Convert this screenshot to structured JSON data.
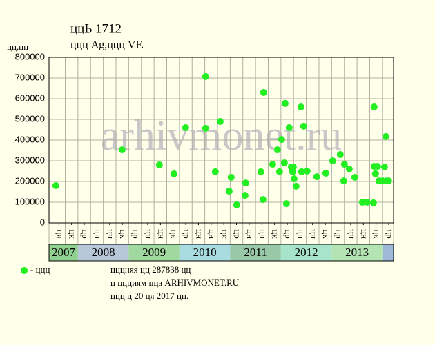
{
  "chart_data": {
    "type": "scatter",
    "title": "ццЬ 1712",
    "subtitle": "ццц Ag,ццц VF.",
    "y_label": "цц,цц",
    "watermark": "arhivmonet.ru",
    "ylim": [
      0,
      800000
    ],
    "yticks": [
      0,
      100000,
      200000,
      300000,
      400000,
      500000,
      600000,
      700000,
      800000
    ],
    "xlim": [
      2007.43,
      2014.22
    ],
    "xticks": [
      {
        "value": 2007.625,
        "label": "ця"
      },
      {
        "value": 2007.875,
        "label": "цк"
      },
      {
        "value": 2008.125,
        "label": "цр"
      },
      {
        "value": 2008.375,
        "label": "цн"
      },
      {
        "value": 2008.625,
        "label": "цн"
      },
      {
        "value": 2008.875,
        "label": "цк"
      },
      {
        "value": 2009.125,
        "label": "цр"
      },
      {
        "value": 2009.375,
        "label": "цн"
      },
      {
        "value": 2009.625,
        "label": "цн"
      },
      {
        "value": 2009.875,
        "label": "цк"
      },
      {
        "value": 2010.125,
        "label": "цр"
      },
      {
        "value": 2010.375,
        "label": "цн"
      },
      {
        "value": 2010.625,
        "label": "цн"
      },
      {
        "value": 2010.875,
        "label": "цк"
      },
      {
        "value": 2011.125,
        "label": "цр"
      },
      {
        "value": 2011.375,
        "label": "цн"
      },
      {
        "value": 2011.625,
        "label": "цн"
      },
      {
        "value": 2011.875,
        "label": "цк"
      },
      {
        "value": 2012.125,
        "label": "цр"
      },
      {
        "value": 2012.375,
        "label": "цн"
      },
      {
        "value": 2012.625,
        "label": "цн"
      },
      {
        "value": 2012.875,
        "label": "цк"
      },
      {
        "value": 2013.125,
        "label": "цр"
      },
      {
        "value": 2013.375,
        "label": "цн"
      },
      {
        "value": 2013.625,
        "label": "цн"
      },
      {
        "value": 2013.875,
        "label": "цк"
      },
      {
        "value": 2014.125,
        "label": "цр"
      }
    ],
    "year_bands": [
      {
        "label": "2007",
        "start": 2007,
        "end": 2008,
        "color": "#90d090"
      },
      {
        "label": "2008",
        "start": 2008,
        "end": 2009,
        "color": "#b8c8d8"
      },
      {
        "label": "2009",
        "start": 2009,
        "end": 2010,
        "color": "#a0d8a0"
      },
      {
        "label": "2010",
        "start": 2010,
        "end": 2011,
        "color": "#a8dce0"
      },
      {
        "label": "2011",
        "start": 2011,
        "end": 2012,
        "color": "#98c8a8"
      },
      {
        "label": "2012",
        "start": 2012,
        "end": 2013,
        "color": "#a8e4cc"
      },
      {
        "label": "2013",
        "start": 2013,
        "end": 2014,
        "color": "#b4e4b4"
      },
      {
        "label": null,
        "start": 2014,
        "end": 2015,
        "color": "#a0b8d8"
      }
    ],
    "grid": true,
    "series": [
      {
        "name": "- ццц",
        "color": "#22ee22",
        "x": [
          2007.565,
          2008.871,
          2009.605,
          2009.891,
          2010.122,
          2010.517,
          2010.517,
          2010.707,
          2010.803,
          2010.98,
          2011.02,
          2011.129,
          2011.293,
          2011.306,
          2011.605,
          2011.646,
          2011.66,
          2011.837,
          2011.932,
          2011.973,
          2012.014,
          2012.068,
          2012.082,
          2012.109,
          2012.163,
          2012.204,
          2012.231,
          2012.245,
          2012.259,
          2012.299,
          2012.395,
          2012.408,
          2012.449,
          2012.517,
          2012.707,
          2012.884,
          2013.02,
          2013.17,
          2013.238,
          2013.252,
          2013.347,
          2013.456,
          2013.605,
          2013.701,
          2013.823,
          2013.837,
          2013.837,
          2013.864,
          2013.905,
          2013.932,
          2014.0,
          2014.041,
          2014.068,
          2014.082,
          2014.122
        ],
        "values": [
          180000,
          353000,
          280000,
          237000,
          460000,
          707000,
          457000,
          247000,
          490000,
          153000,
          220000,
          87000,
          133000,
          193000,
          247000,
          113000,
          630000,
          283000,
          353000,
          247000,
          403000,
          290000,
          577000,
          93000,
          460000,
          270000,
          247000,
          270000,
          213000,
          177000,
          560000,
          247000,
          467000,
          250000,
          223000,
          240000,
          300000,
          330000,
          203000,
          283000,
          260000,
          220000,
          100000,
          100000,
          97000,
          560000,
          273000,
          237000,
          273000,
          203000,
          203000,
          270000,
          417000,
          203000,
          203000
        ]
      }
    ],
    "notes": [
      "цццняя цц 287838 цц",
      "ц ццциям цца ARHIVMONET.RU",
      "ццц ц 20 ця 2017 цц."
    ]
  }
}
